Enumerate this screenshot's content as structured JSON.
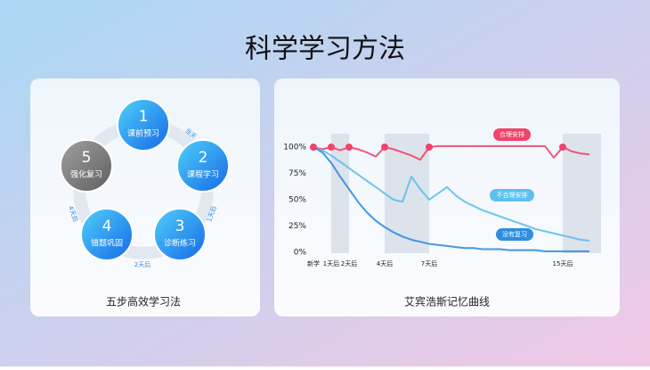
{
  "title": "科学学习方法",
  "cycle": {
    "steps": [
      {
        "num": "1",
        "label": "课前预习"
      },
      {
        "num": "2",
        "label": "课程学习"
      },
      {
        "num": "3",
        "label": "诊断练习"
      },
      {
        "num": "4",
        "label": "错题巩固"
      },
      {
        "num": "5",
        "label": "强化复习"
      }
    ],
    "intervals": [
      "当天",
      "1天后",
      "2天后",
      "4天后"
    ],
    "caption": "五步高效学习法"
  },
  "chart_data": {
    "type": "line",
    "title": "艾宾浩斯记忆曲线",
    "categories": [
      "新学",
      null,
      "1天后",
      null,
      "2天后",
      null,
      null,
      null,
      "4天后",
      null,
      null,
      null,
      null,
      "7天后",
      null,
      null,
      null,
      null,
      null,
      null,
      null,
      null,
      null,
      null,
      null,
      null,
      null,
      null,
      "15天后",
      null,
      null,
      null
    ],
    "series": [
      {
        "name": "合理安排",
        "color": "#f0446a",
        "values": [
          100,
          98,
          100,
          97,
          100,
          98,
          95,
          91,
          100,
          98,
          95,
          92,
          88,
          100,
          101,
          101,
          101,
          101,
          101,
          101,
          101,
          101,
          101,
          101,
          101,
          101,
          101,
          90,
          100,
          96,
          94,
          93
        ]
      },
      {
        "name": "不合理安排",
        "color": "#5bc0f0",
        "values": [
          100,
          97,
          92,
          86,
          80,
          74,
          68,
          62,
          56,
          50,
          48,
          72,
          60,
          50,
          56,
          62,
          54,
          48,
          44,
          40,
          37,
          34,
          31,
          28,
          25,
          22,
          20,
          18,
          16,
          14,
          12,
          11
        ]
      },
      {
        "name": "没有复习",
        "color": "#2f8de0",
        "values": [
          100,
          95,
          85,
          72,
          60,
          48,
          38,
          30,
          24,
          19,
          15,
          12,
          10,
          8,
          7,
          6,
          5,
          4,
          4,
          3,
          3,
          3,
          2,
          2,
          2,
          2,
          1,
          1,
          1,
          1,
          1,
          1
        ]
      }
    ],
    "ylim": [
      0,
      100
    ],
    "yticks": [
      {
        "value": 0,
        "label": "0%"
      },
      {
        "value": 25,
        "label": "25%"
      },
      {
        "value": 50,
        "label": "50%"
      },
      {
        "value": 75,
        "label": "75%"
      },
      {
        "value": 100,
        "label": "100%"
      }
    ]
  }
}
